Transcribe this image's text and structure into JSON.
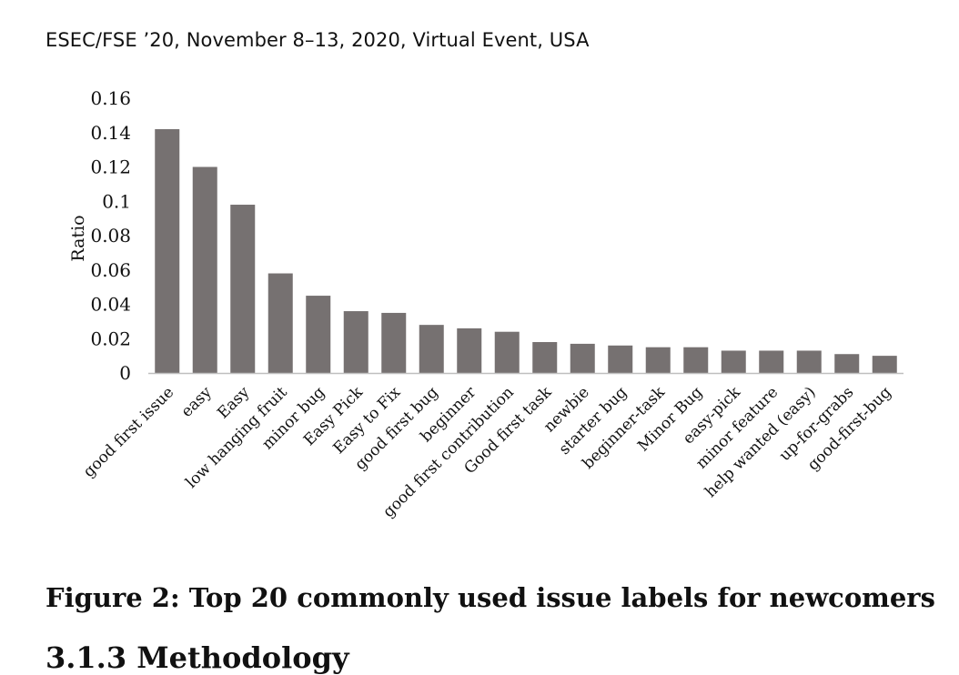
{
  "header": {
    "running_text": "ESEC/FSE ’20, November 8–13, 2020, Virtual Event, USA"
  },
  "caption": "Figure 2: Top 20 commonly used issue labels for newcomers",
  "next_heading": "3.1.3   Methodology",
  "chart_data": {
    "type": "bar",
    "title": "",
    "xlabel": "",
    "ylabel": "Ratio",
    "ylim": [
      0,
      0.16
    ],
    "yticks": [
      "0",
      "0.02",
      "0.04",
      "0.06",
      "0.08",
      "0.1",
      "0.12",
      "0.14",
      "0.16"
    ],
    "grid": false,
    "legend": "none",
    "bar_color": "#767171",
    "categories": [
      "good first issue",
      "easy",
      "Easy",
      "low hanging fruit",
      "minor bug",
      "Easy Pick",
      "Easy to Fix",
      "good first bug",
      "beginner",
      "good first contribution",
      "Good first task",
      "newbie",
      "starter bug",
      "beginner-task",
      "Minor Bug",
      "easy-pick",
      "minor feature",
      "help wanted (easy)",
      "up-for-grabs",
      "good-first-bug"
    ],
    "values": [
      0.142,
      0.12,
      0.098,
      0.058,
      0.045,
      0.036,
      0.035,
      0.028,
      0.026,
      0.024,
      0.018,
      0.017,
      0.016,
      0.015,
      0.015,
      0.013,
      0.013,
      0.013,
      0.011,
      0.01
    ]
  }
}
